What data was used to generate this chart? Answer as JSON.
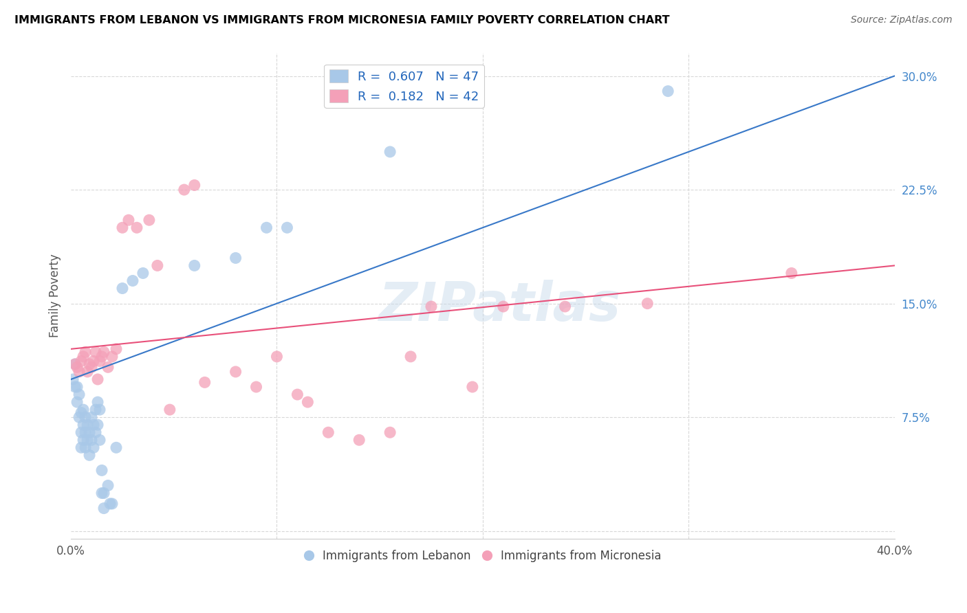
{
  "title": "IMMIGRANTS FROM LEBANON VS IMMIGRANTS FROM MICRONESIA FAMILY POVERTY CORRELATION CHART",
  "source": "Source: ZipAtlas.com",
  "ylabel": "Family Poverty",
  "yticks": [
    0.0,
    0.075,
    0.15,
    0.225,
    0.3
  ],
  "ytick_labels": [
    "",
    "7.5%",
    "15.0%",
    "22.5%",
    "30.0%"
  ],
  "xlim": [
    0.0,
    0.4
  ],
  "ylim": [
    -0.005,
    0.315
  ],
  "legend_R1": "0.607",
  "legend_N1": "47",
  "legend_R2": "0.182",
  "legend_N2": "42",
  "blue_color": "#a8c8e8",
  "pink_color": "#f4a0b8",
  "blue_line_color": "#3878c8",
  "pink_line_color": "#e8507a",
  "watermark": "ZIPatlas",
  "lebanon_x": [
    0.001,
    0.002,
    0.002,
    0.003,
    0.003,
    0.004,
    0.004,
    0.005,
    0.005,
    0.005,
    0.006,
    0.006,
    0.006,
    0.007,
    0.007,
    0.007,
    0.008,
    0.008,
    0.009,
    0.009,
    0.01,
    0.01,
    0.011,
    0.011,
    0.012,
    0.012,
    0.013,
    0.013,
    0.014,
    0.014,
    0.015,
    0.015,
    0.016,
    0.016,
    0.018,
    0.019,
    0.02,
    0.022,
    0.025,
    0.03,
    0.035,
    0.06,
    0.08,
    0.095,
    0.105,
    0.155,
    0.29
  ],
  "lebanon_y": [
    0.1,
    0.095,
    0.11,
    0.085,
    0.095,
    0.075,
    0.09,
    0.065,
    0.078,
    0.055,
    0.06,
    0.07,
    0.08,
    0.055,
    0.065,
    0.075,
    0.06,
    0.07,
    0.05,
    0.065,
    0.06,
    0.075,
    0.055,
    0.07,
    0.065,
    0.08,
    0.07,
    0.085,
    0.06,
    0.08,
    0.025,
    0.04,
    0.015,
    0.025,
    0.03,
    0.018,
    0.018,
    0.055,
    0.16,
    0.165,
    0.17,
    0.175,
    0.18,
    0.2,
    0.2,
    0.25,
    0.29
  ],
  "micronesia_x": [
    0.002,
    0.003,
    0.004,
    0.005,
    0.006,
    0.007,
    0.008,
    0.009,
    0.01,
    0.011,
    0.012,
    0.013,
    0.014,
    0.015,
    0.016,
    0.018,
    0.02,
    0.022,
    0.025,
    0.028,
    0.032,
    0.038,
    0.042,
    0.048,
    0.055,
    0.06,
    0.065,
    0.08,
    0.09,
    0.1,
    0.11,
    0.115,
    0.125,
    0.14,
    0.155,
    0.165,
    0.175,
    0.195,
    0.21,
    0.24,
    0.28,
    0.35
  ],
  "micronesia_y": [
    0.11,
    0.108,
    0.105,
    0.112,
    0.115,
    0.118,
    0.105,
    0.11,
    0.108,
    0.112,
    0.118,
    0.1,
    0.112,
    0.115,
    0.118,
    0.108,
    0.115,
    0.12,
    0.2,
    0.205,
    0.2,
    0.205,
    0.175,
    0.08,
    0.225,
    0.228,
    0.098,
    0.105,
    0.095,
    0.115,
    0.09,
    0.085,
    0.065,
    0.06,
    0.065,
    0.115,
    0.148,
    0.095,
    0.148,
    0.148,
    0.15,
    0.17
  ],
  "blue_line_x0": 0.0,
  "blue_line_y0": 0.1,
  "blue_line_x1": 0.4,
  "blue_line_y1": 0.3,
  "pink_line_x0": 0.0,
  "pink_line_y0": 0.12,
  "pink_line_x1": 0.4,
  "pink_line_y1": 0.175
}
